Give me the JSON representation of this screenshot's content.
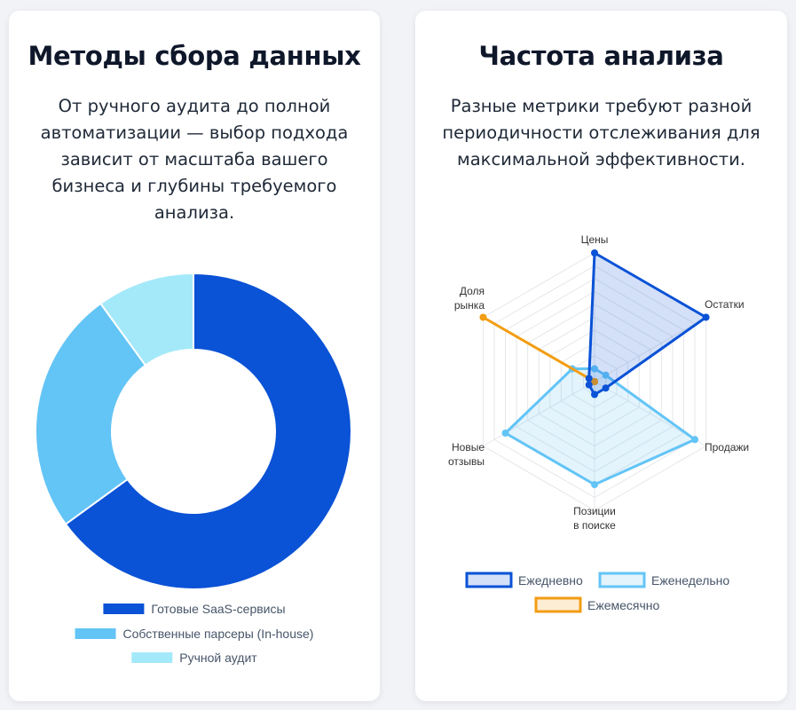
{
  "left_card": {
    "title": "Методы сбора данных",
    "description": "От ручного аудита до полной автоматизации — выбор подхода зависит от масштаба вашего бизнеса и глубины требуемого анализа."
  },
  "right_card": {
    "title": "Частота анализа",
    "description": "Разные метрики требуют разной периодичности отслеживания для максимальной эффективности."
  },
  "chart_data": [
    {
      "type": "pie",
      "variant": "doughnut",
      "categories": [
        "Готовые SaaS-сервисы",
        "Собственные парсеры (In-house)",
        "Ручной аудит"
      ],
      "values": [
        65,
        25,
        10
      ],
      "colors": [
        "#0a52d6",
        "#63c4f6",
        "#a4e9f9"
      ],
      "legend_position": "bottom"
    },
    {
      "type": "radar",
      "axes": [
        [
          "Цены"
        ],
        [
          "Остатки"
        ],
        [
          "Продажи"
        ],
        [
          "Позиции",
          "в поиске"
        ],
        [
          "Новые",
          "отзывы"
        ],
        [
          "Доля",
          "рынка"
        ]
      ],
      "rlim": [
        0,
        100
      ],
      "grid": true,
      "legend_position": "bottom",
      "series": [
        {
          "name": "Ежедневно",
          "values": [
            100,
            100,
            10,
            10,
            5,
            5
          ],
          "color": "#0a52d6",
          "fill": "rgba(10,82,214,0.18)"
        },
        {
          "name": "Еженедельно",
          "values": [
            10,
            10,
            90,
            80,
            80,
            20
          ],
          "color": "#63c4f6",
          "fill": "rgba(99,196,246,0.18)"
        },
        {
          "name": "Ежемесячно",
          "values": [
            0,
            0,
            0,
            0,
            0,
            100
          ],
          "color": "#f29d12",
          "fill": "rgba(242,157,18,0.18)"
        }
      ]
    }
  ]
}
